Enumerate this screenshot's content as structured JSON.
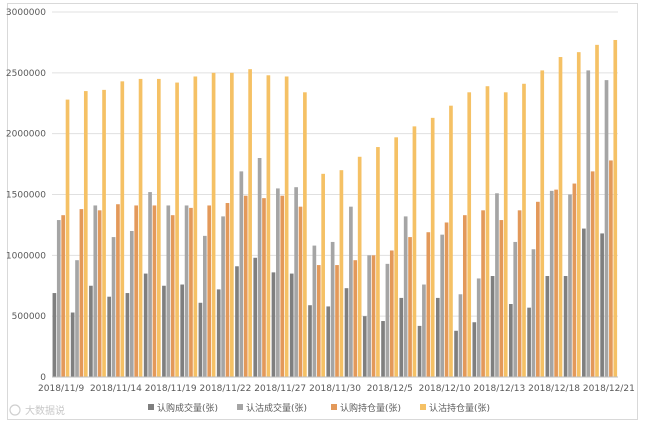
{
  "chart_data": {
    "type": "bar",
    "title": "",
    "xlabel": "",
    "ylabel": "",
    "ylim": [
      0,
      3000000
    ],
    "yticks": [
      0,
      500000,
      1000000,
      1500000,
      2000000,
      2500000,
      3000000
    ],
    "ytick_labels": [
      "0",
      "500000",
      "1000000",
      "1500000",
      "2000000",
      "2500000",
      "3000000"
    ],
    "grid": true,
    "legend_position": "bottom",
    "xtick_labels": [
      {
        "label": "2018/11/9",
        "index": 0
      },
      {
        "label": "2018/11/14",
        "index": 3
      },
      {
        "label": "2018/11/19",
        "index": 6
      },
      {
        "label": "2018/11/22",
        "index": 9
      },
      {
        "label": "2018/11/27",
        "index": 12
      },
      {
        "label": "2018/11/30",
        "index": 15
      },
      {
        "label": "2018/12/5",
        "index": 18
      },
      {
        "label": "2018/12/10",
        "index": 21
      },
      {
        "label": "2018/12/13",
        "index": 24
      },
      {
        "label": "2018/12/18",
        "index": 27
      },
      {
        "label": "2018/12/21",
        "index": 30
      }
    ],
    "series": [
      {
        "name": "认购成交量(张)",
        "color": "#7f7f7f",
        "values": [
          690000,
          530000,
          750000,
          660000,
          690000,
          850000,
          750000,
          760000,
          610000,
          720000,
          910000,
          980000,
          860000,
          850000,
          590000,
          580000,
          730000,
          500000,
          460000,
          650000,
          420000,
          650000,
          380000,
          450000,
          830000,
          600000,
          570000,
          830000,
          830000,
          1220000,
          1180000
        ]
      },
      {
        "name": "认沽成交量(张)",
        "color": "#a5a5a5",
        "values": [
          1290000,
          960000,
          1410000,
          1150000,
          1200000,
          1520000,
          1410000,
          1410000,
          1160000,
          1320000,
          1690000,
          1800000,
          1550000,
          1560000,
          1080000,
          1110000,
          1400000,
          1000000,
          930000,
          1320000,
          760000,
          1170000,
          680000,
          810000,
          1510000,
          1110000,
          1050000,
          1530000,
          1500000,
          2520000,
          2440000
        ]
      },
      {
        "name": "认购持仓量(张)",
        "color": "#e3995a",
        "values": [
          1330000,
          1380000,
          1370000,
          1420000,
          1410000,
          1410000,
          1330000,
          1390000,
          1410000,
          1430000,
          1490000,
          1470000,
          1490000,
          1400000,
          920000,
          920000,
          960000,
          1000000,
          1040000,
          1150000,
          1190000,
          1270000,
          1330000,
          1370000,
          1290000,
          1370000,
          1440000,
          1540000,
          1590000,
          1690000,
          1780000
        ]
      },
      {
        "name": "认沽持仓量(张)",
        "color": "#f5c165",
        "values": [
          2280000,
          2350000,
          2360000,
          2430000,
          2450000,
          2450000,
          2420000,
          2470000,
          2500000,
          2500000,
          2530000,
          2480000,
          2470000,
          2340000,
          1670000,
          1700000,
          1810000,
          1890000,
          1970000,
          2060000,
          2130000,
          2230000,
          2340000,
          2390000,
          2340000,
          2410000,
          2520000,
          2630000,
          2670000,
          2730000,
          2770000
        ]
      }
    ]
  },
  "watermark": "大数据说"
}
